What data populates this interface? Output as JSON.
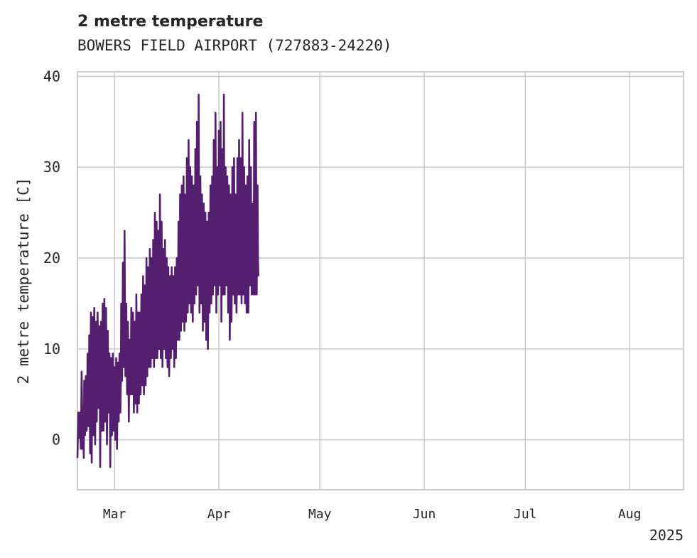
{
  "chart_data": {
    "type": "line",
    "title": "2 metre temperature",
    "subtitle": "BOWERS FIELD AIRPORT (727883-24220)",
    "ylabel": "2 metre temperature [C]",
    "xlabel": "",
    "xlim": [
      "2025-02-18",
      "2025-08-17"
    ],
    "ylim": [
      -5.5,
      40.5
    ],
    "yticks": [
      0,
      10,
      20,
      30,
      40
    ],
    "xticks": [
      {
        "date": "2025-03-01",
        "label": "Mar"
      },
      {
        "date": "2025-04-01",
        "label": "Apr"
      },
      {
        "date": "2025-05-01",
        "label": "May"
      },
      {
        "date": "2025-06-01",
        "label": "Jun"
      },
      {
        "date": "2025-07-01",
        "label": "Jul"
      },
      {
        "date": "2025-08-01",
        "label": "Aug"
      }
    ],
    "x_offset_label": "2025",
    "grid": true,
    "line_color": "#541f6e",
    "series": [
      {
        "x_start": "2025-02-18T00:00",
        "interval_hours": 3,
        "values": [
          -2.0,
          0.5,
          3.0,
          2.0,
          0.2,
          1.5,
          3.0,
          1.0,
          -1.0,
          2.5,
          7.5,
          4.0,
          -1.0,
          3.5,
          1.2,
          -2.0,
          6.5,
          3.0,
          0.5,
          4.5,
          7.0,
          2.5,
          1.0,
          4.0,
          9.5,
          6.0,
          1.5,
          3.0,
          11.5,
          5.0,
          -1.5,
          7.0,
          14.0,
          3.0,
          -2.5,
          6.0,
          13.5,
          6.5,
          0.5,
          8.0,
          14.5,
          7.0,
          -0.5,
          5.0,
          13.0,
          9.0,
          2.0,
          6.5,
          14.0,
          10.0,
          3.5,
          8.0,
          12.5,
          6.0,
          -3.0,
          4.0,
          13.0,
          7.5,
          1.0,
          6.0,
          15.0,
          8.0,
          1.0,
          5.0,
          15.5,
          9.0,
          2.0,
          7.0,
          14.5,
          7.0,
          -0.5,
          4.5,
          12.0,
          8.0,
          3.0,
          5.5,
          9.5,
          5.5,
          -3.0,
          3.0,
          9.0,
          4.0,
          0.5,
          5.5,
          9.5,
          6.0,
          1.0,
          3.5,
          8.0,
          5.0,
          0.0,
          4.0,
          9.0,
          6.0,
          -1.0,
          3.5,
          8.5,
          5.5,
          2.0,
          6.0,
          9.5,
          7.0,
          3.0,
          5.5,
          15.0,
          11.0,
          6.5,
          12.0,
          19.5,
          14.0,
          8.0,
          15.0,
          23.0,
          14.0,
          7.0,
          12.0,
          15.0,
          10.0,
          5.0,
          9.0,
          13.0,
          8.0,
          2.0,
          7.0,
          11.0,
          8.0,
          5.0,
          9.0,
          14.5,
          10.0,
          5.0,
          10.0,
          14.0,
          9.0,
          3.0,
          7.0,
          13.0,
          9.0,
          4.0,
          9.0,
          16.0,
          10.0,
          3.0,
          8.0,
          14.0,
          9.0,
          4.0,
          9.0,
          14.0,
          9.0,
          5.0,
          10.0,
          16.0,
          11.0,
          6.0,
          10.0,
          18.0,
          12.0,
          5.0,
          10.0,
          17.0,
          12.0,
          6.0,
          11.0,
          20.0,
          14.0,
          7.0,
          12.0,
          19.0,
          13.0,
          8.0,
          13.0,
          21.0,
          14.0,
          8.0,
          13.0,
          20.0,
          14.0,
          9.0,
          13.0,
          22.0,
          15.0,
          8.0,
          13.0,
          25.0,
          17.0,
          9.0,
          14.0,
          24.0,
          16.0,
          9.0,
          14.0,
          23.0,
          16.0,
          10.0,
          15.0,
          27.0,
          18.0,
          9.0,
          14.0,
          24.0,
          15.0,
          8.0,
          13.0,
          21.0,
          15.0,
          10.0,
          15.0,
          22.0,
          16.0,
          9.0,
          14.0,
          20.0,
          14.0,
          8.0,
          13.0,
          19.0,
          13.0,
          7.0,
          12.0,
          18.0,
          14.0,
          9.0,
          14.0,
          19.0,
          14.0,
          10.0,
          14.0,
          18.0,
          13.0,
          8.0,
          13.0,
          19.0,
          14.0,
          9.0,
          14.0,
          20.0,
          15.0,
          11.0,
          16.0,
          24.0,
          17.0,
          11.0,
          16.0,
          27.0,
          19.0,
          12.0,
          17.0,
          28.0,
          20.0,
          13.0,
          18.0,
          29.0,
          20.0,
          12.0,
          17.0,
          27.0,
          20.0,
          13.0,
          18.0,
          31.0,
          22.0,
          14.0,
          19.0,
          33.0,
          23.0,
          15.0,
          20.0,
          30.0,
          22.0,
          14.0,
          19.0,
          29.0,
          21.0,
          13.0,
          18.0,
          28.0,
          22.0,
          15.0,
          20.0,
          32.0,
          23.0,
          16.0,
          21.0,
          35.0,
          24.0,
          17.0,
          21.0,
          38.0,
          24.0,
          14.0,
          19.0,
          29.0,
          22.0,
          15.0,
          20.0,
          27.0,
          20.0,
          12.0,
          17.0,
          26.0,
          20.0,
          13.0,
          18.0,
          25.0,
          19.0,
          11.0,
          16.0,
          24.0,
          19.0,
          10.0,
          16.0,
          25.0,
          20.0,
          14.0,
          19.0,
          28.0,
          22.0,
          15.0,
          20.0,
          29.0,
          23.0,
          16.0,
          21.0,
          33.0,
          24.0,
          17.0,
          22.0,
          36.0,
          25.0,
          14.0,
          20.0,
          30.0,
          24.0,
          16.0,
          22.0,
          34.0,
          25.0,
          17.0,
          23.0,
          35.0,
          25.0,
          13.0,
          19.0,
          32.0,
          24.0,
          16.0,
          22.0,
          38.0,
          26.0,
          16.0,
          21.0,
          30.0,
          24.0,
          17.0,
          22.0,
          29.0,
          23.0,
          14.0,
          19.0,
          28.0,
          22.0,
          11.0,
          17.0,
          27.0,
          22.0,
          13.0,
          18.0,
          30.0,
          24.0,
          16.0,
          22.0,
          31.0,
          24.0,
          15.0,
          20.0,
          27.0,
          21.0,
          14.0,
          19.0,
          31.0,
          24.0,
          16.0,
          22.0,
          33.0,
          25.0,
          16.0,
          21.0,
          31.0,
          24.0,
          15.0,
          20.0,
          36.0,
          26.0,
          16.0,
          22.0,
          30.0,
          23.0,
          15.0,
          20.0,
          28.0,
          22.0,
          14.0,
          20.0,
          29.0,
          23.0,
          14.0,
          19.0,
          33.0,
          25.0,
          17.0,
          23.0,
          30.0,
          22.0,
          16.0,
          21.0,
          26.0,
          21.0,
          16.0,
          22.0,
          35.0,
          25.0,
          16.0,
          21.0,
          36.0,
          24.0,
          16.0,
          22.0,
          28.0,
          20.0,
          18.0
        ]
      }
    ]
  }
}
